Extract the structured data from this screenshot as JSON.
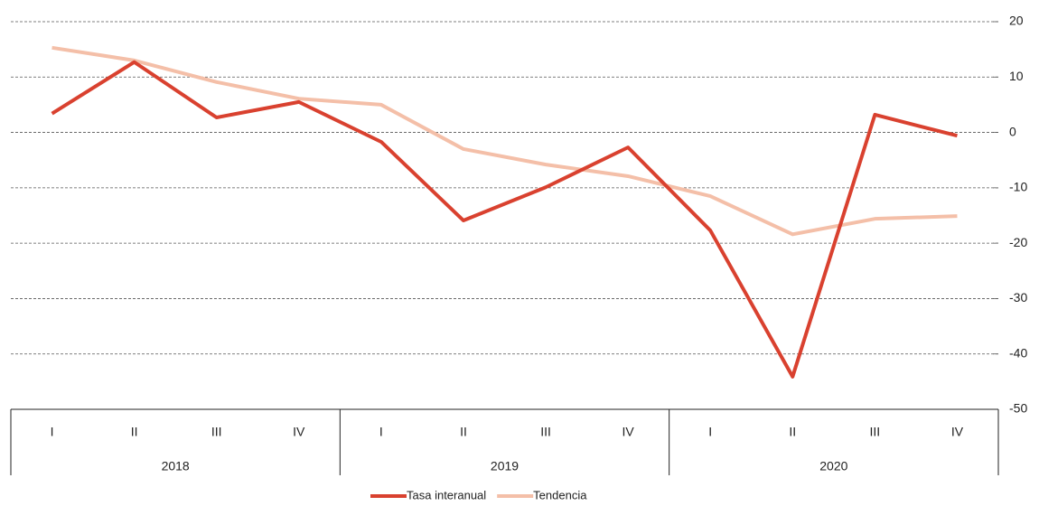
{
  "chart_data": {
    "type": "line",
    "categories": [
      "I",
      "II",
      "III",
      "IV",
      "I",
      "II",
      "III",
      "IV",
      "I",
      "II",
      "III",
      "IV"
    ],
    "groups": [
      "2018",
      "2019",
      "2020"
    ],
    "series": [
      {
        "name": "Tasa interanual",
        "color": "#d9412f",
        "values": [
          3.4,
          12.7,
          2.7,
          5.5,
          -1.7,
          -15.9,
          -9.9,
          -2.7,
          -17.7,
          -44.1,
          3.2,
          -0.6
        ]
      },
      {
        "name": "Tendencia",
        "color": "#f4bfa8",
        "values": [
          15.3,
          13.0,
          9.1,
          6.1,
          5.0,
          -3.0,
          -5.8,
          -7.9,
          -11.5,
          -18.4,
          -15.6,
          -15.1
        ]
      }
    ],
    "ylim": [
      -50,
      20
    ],
    "yticks": [
      -50,
      -40,
      -30,
      -20,
      -10,
      0,
      10,
      20
    ],
    "grid": true,
    "y_axis_side": "right",
    "legend": "bottom"
  }
}
